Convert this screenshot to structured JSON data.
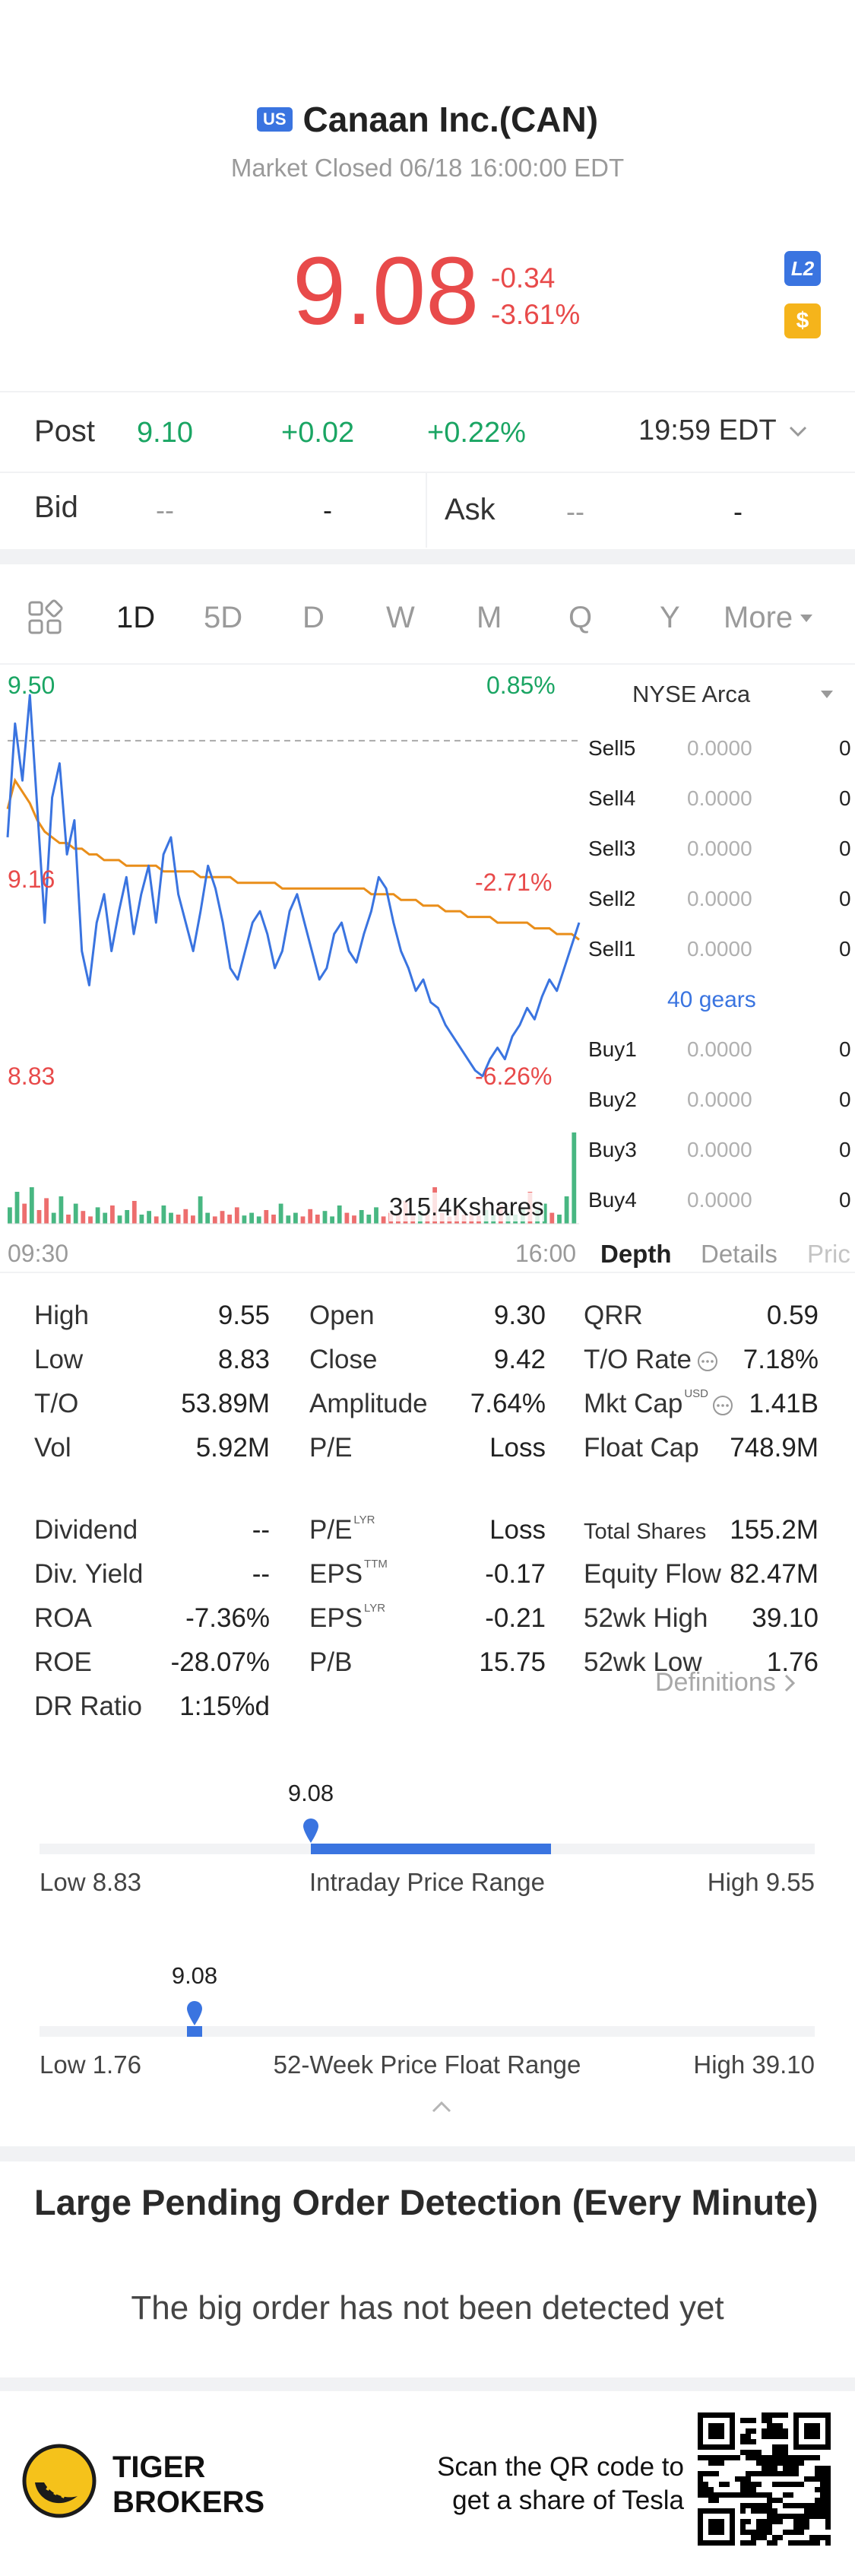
{
  "header": {
    "market_badge": "US",
    "title": "Canaan Inc.(CAN)",
    "status": "Market Closed 06/18 16:00:00 EDT"
  },
  "quote": {
    "price": "9.08",
    "change": "-0.34",
    "change_pct": "-3.61%",
    "l2_badge": "L2",
    "dollar_badge": "$"
  },
  "post": {
    "label": "Post",
    "price": "9.10",
    "change": "+0.02",
    "change_pct": "+0.22%",
    "time": "19:59 EDT"
  },
  "bid_ask": {
    "bid_label": "Bid",
    "bid_price": "--",
    "bid_size": "-",
    "ask_label": "Ask",
    "ask_price": "--",
    "ask_size": "-"
  },
  "tabs": {
    "items": [
      "1D",
      "5D",
      "D",
      "W",
      "M",
      "Q",
      "Y"
    ],
    "more": "More",
    "active": "1D"
  },
  "chart_data": {
    "type": "line",
    "x_start": "09:30",
    "x_end": "16:00",
    "y_high": "9.50",
    "y_mid": "9.16",
    "y_low": "8.83",
    "pct_high": "0.85%",
    "pct_mid": "-2.71%",
    "pct_low": "-6.26%",
    "volume_label": "315.4Kshares",
    "ylim": [
      8.83,
      9.5
    ],
    "prev_close": 9.42,
    "series": [
      {
        "values": [
          9.25,
          9.45,
          9.35,
          9.5,
          9.3,
          9.1,
          9.32,
          9.38,
          9.22,
          9.28,
          9.05,
          8.99,
          9.1,
          9.15,
          9.05,
          9.12,
          9.18,
          9.08,
          9.15,
          9.2,
          9.1,
          9.22,
          9.25,
          9.15,
          9.1,
          9.05,
          9.12,
          9.2,
          9.16,
          9.1,
          9.02,
          9.0,
          9.05,
          9.1,
          9.12,
          9.08,
          9.02,
          9.05,
          9.12,
          9.15,
          9.1,
          9.05,
          9.0,
          9.02,
          9.08,
          9.1,
          9.05,
          9.03,
          9.08,
          9.12,
          9.18,
          9.16,
          9.1,
          9.05,
          9.02,
          8.98,
          9.0,
          8.96,
          8.95,
          8.92,
          8.9,
          8.88,
          8.86,
          8.84,
          8.83,
          8.86,
          8.88,
          8.86,
          8.9,
          8.92,
          8.95,
          8.93,
          8.97,
          9.0,
          8.98,
          9.02,
          9.06,
          9.1
        ]
      },
      {
        "values": [
          9.3,
          9.35,
          9.33,
          9.31,
          9.28,
          9.26,
          9.25,
          9.24,
          9.24,
          9.23,
          9.23,
          9.22,
          9.22,
          9.21,
          9.21,
          9.21,
          9.2,
          9.2,
          9.2,
          9.2,
          9.2,
          9.19,
          9.19,
          9.19,
          9.19,
          9.19,
          9.18,
          9.18,
          9.18,
          9.18,
          9.18,
          9.17,
          9.17,
          9.17,
          9.17,
          9.17,
          9.17,
          9.16,
          9.16,
          9.16,
          9.16,
          9.16,
          9.16,
          9.16,
          9.16,
          9.16,
          9.16,
          9.16,
          9.16,
          9.15,
          9.15,
          9.15,
          9.15,
          9.14,
          9.14,
          9.14,
          9.13,
          9.13,
          9.13,
          9.12,
          9.12,
          9.12,
          9.11,
          9.11,
          9.11,
          9.11,
          9.1,
          9.1,
          9.1,
          9.1,
          9.1,
          9.09,
          9.09,
          9.09,
          9.08,
          9.08,
          9.08,
          9.07
        ]
      }
    ],
    "volume": [
      0.18,
      0.35,
      0.22,
      0.4,
      0.15,
      0.28,
      0.12,
      0.3,
      0.1,
      0.22,
      0.14,
      0.08,
      0.18,
      0.12,
      0.2,
      0.09,
      0.15,
      0.25,
      0.1,
      0.14,
      0.08,
      0.2,
      0.12,
      0.1,
      0.16,
      0.09,
      0.3,
      0.12,
      0.08,
      0.14,
      0.1,
      0.18,
      0.09,
      0.12,
      0.08,
      0.15,
      0.1,
      0.22,
      0.09,
      0.12,
      0.08,
      0.16,
      0.1,
      0.14,
      0.08,
      0.2,
      0.12,
      0.09,
      0.15,
      0.1,
      0.18,
      0.08,
      0.12,
      0.1,
      0.25,
      0.09,
      0.14,
      0.1,
      0.4,
      0.12,
      0.08,
      0.16,
      0.1,
      0.12,
      0.09,
      0.15,
      0.1,
      0.2,
      0.12,
      0.1,
      0.18,
      0.35,
      0.15,
      0.22,
      0.12,
      0.1,
      0.3,
      1.0
    ]
  },
  "orderbook": {
    "exchange": "NYSE Arca",
    "sells": [
      {
        "label": "Sell5",
        "price": "0.0000",
        "qty": "0"
      },
      {
        "label": "Sell4",
        "price": "0.0000",
        "qty": "0"
      },
      {
        "label": "Sell3",
        "price": "0.0000",
        "qty": "0"
      },
      {
        "label": "Sell2",
        "price": "0.0000",
        "qty": "0"
      },
      {
        "label": "Sell1",
        "price": "0.0000",
        "qty": "0"
      }
    ],
    "gears": "40 gears",
    "buys": [
      {
        "label": "Buy1",
        "price": "0.0000",
        "qty": "0"
      },
      {
        "label": "Buy2",
        "price": "0.0000",
        "qty": "0"
      },
      {
        "label": "Buy3",
        "price": "0.0000",
        "qty": "0"
      },
      {
        "label": "Buy4",
        "price": "0.0000",
        "qty": "0"
      }
    ],
    "tabs": [
      "Depth",
      "Details",
      "Pric"
    ]
  },
  "stats": {
    "col1": [
      {
        "label": "High",
        "value": "9.55"
      },
      {
        "label": "Low",
        "value": "8.83"
      },
      {
        "label": "T/O",
        "value": "53.89M"
      },
      {
        "label": "Vol",
        "value": "5.92M"
      },
      {
        "label": "Dividend",
        "value": "--"
      },
      {
        "label": "Div. Yield",
        "value": "--"
      },
      {
        "label": "ROA",
        "value": "-7.36%"
      },
      {
        "label": "ROE",
        "value": "-28.07%"
      },
      {
        "label": "DR Ratio",
        "value": "1:15%d"
      }
    ],
    "col2": [
      {
        "label": "Open",
        "value": "9.30",
        "sup": ""
      },
      {
        "label": "Close",
        "value": "9.42",
        "sup": ""
      },
      {
        "label": "Amplitude",
        "value": "7.64%",
        "sup": ""
      },
      {
        "label": "P/E",
        "value": "Loss",
        "sup": ""
      },
      {
        "label": "P/E",
        "value": "Loss",
        "sup": "LYR"
      },
      {
        "label": "EPS",
        "value": "-0.17",
        "sup": "TTM"
      },
      {
        "label": "EPS",
        "value": "-0.21",
        "sup": "LYR"
      },
      {
        "label": "P/B",
        "value": "15.75",
        "sup": ""
      }
    ],
    "col3": [
      {
        "label": "QRR",
        "value": "0.59",
        "sup": ""
      },
      {
        "label": "T/O Rate",
        "value": "7.18%",
        "sup": ""
      },
      {
        "label": "Mkt Cap",
        "value": "1.41B",
        "sup": "USD"
      },
      {
        "label": "Float Cap",
        "value": "748.9M",
        "sup": ""
      },
      {
        "label": "Total Shares",
        "value": "155.2M",
        "sup": ""
      },
      {
        "label": "Equity Flow",
        "value": "82.47M",
        "sup": ""
      },
      {
        "label": "52wk High",
        "value": "39.10",
        "sup": ""
      },
      {
        "label": "52wk Low",
        "value": "1.76",
        "sup": ""
      }
    ],
    "definitions": "Definitions"
  },
  "ranges": {
    "intraday": {
      "marker": "9.08",
      "low": "Low 8.83",
      "title": "Intraday Price Range",
      "high": "High 9.55",
      "position": 0.35,
      "bar_start": 0.35,
      "bar_end": 0.66
    },
    "week52": {
      "marker": "9.08",
      "low": "Low 1.76",
      "title": "52-Week Price Float Range",
      "high": "High 39.10",
      "position": 0.2,
      "bar_start": 0.19,
      "bar_end": 0.21
    }
  },
  "detection": {
    "title": "Large Pending Order Detection (Every Minute)",
    "message": "The big order has not been detected yet"
  },
  "footer": {
    "brand_line1": "TIGER",
    "brand_line2": "BROKERS",
    "cta_line1": "Scan the QR code to",
    "cta_line2": "get a share of Tesla"
  },
  "colors": {
    "red": "#e84a4a",
    "green": "#1aa563",
    "blue": "#3a74e0",
    "orange": "#e98e1a",
    "yellow": "#f5c21b"
  }
}
